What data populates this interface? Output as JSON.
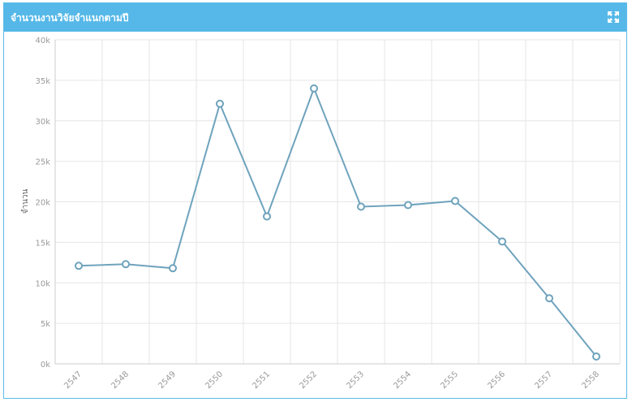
{
  "panel": {
    "title": "จำนวนงานวิจัยจำแนกตามปี",
    "expand_icon": "expand-icon"
  },
  "colors": {
    "header": "#55b8e8",
    "line": "#6fa3bd",
    "grid": "#e6e6e6"
  },
  "chart_data": {
    "type": "line",
    "title": "",
    "xlabel": "",
    "ylabel": "จำนวน",
    "categories": [
      "2547",
      "2548",
      "2549",
      "2550",
      "2551",
      "2552",
      "2553",
      "2554",
      "2555",
      "2556",
      "2557",
      "2558"
    ],
    "series": [
      {
        "values": [
          12100,
          12300,
          11800,
          32100,
          18200,
          34000,
          19400,
          19600,
          20100,
          15100,
          8100,
          900
        ]
      }
    ],
    "ylim": [
      0,
      40000
    ],
    "yticks": [
      0,
      5000,
      10000,
      15000,
      20000,
      25000,
      30000,
      35000,
      40000
    ],
    "ytick_labels": [
      "0k",
      "5k",
      "10k",
      "15k",
      "20k",
      "25k",
      "30k",
      "35k",
      "40k"
    ],
    "grid": true,
    "legend": "none"
  }
}
